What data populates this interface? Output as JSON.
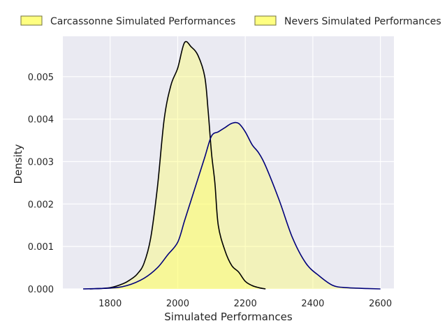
{
  "chart_data": {
    "type": "area",
    "title": "",
    "xlabel": "Simulated Performances",
    "ylabel": "Density",
    "xlim": [
      1660,
      2640
    ],
    "ylim": [
      0,
      0.00595
    ],
    "x_ticks": [
      1800,
      2000,
      2200,
      2400,
      2600
    ],
    "y_ticks": [
      0.0,
      0.001,
      0.002,
      0.003,
      0.004,
      0.005
    ],
    "y_tick_labels": [
      "0.000",
      "0.001",
      "0.002",
      "0.003",
      "0.004",
      "0.005"
    ],
    "grid": true,
    "legend_position": "top",
    "colors": {
      "background": "#eaeaf2",
      "grid": "#ffffff",
      "fill": "#ffff66",
      "fill_opacity": 0.4,
      "legend_patch": "#ffff80",
      "legend_edge": "#707040"
    },
    "series": [
      {
        "name": "Carcassonne Simulated Performances",
        "color": "#000000",
        "x": [
          1740,
          1800,
          1840,
          1860,
          1880,
          1900,
          1920,
          1940,
          1960,
          1980,
          2000,
          2020,
          2040,
          2060,
          2080,
          2090,
          2100,
          2110,
          2120,
          2140,
          2160,
          2180,
          2200,
          2220,
          2240,
          2260
        ],
        "y": [
          0.0,
          3e-05,
          0.00013,
          0.00022,
          0.00035,
          0.0006,
          0.0012,
          0.0024,
          0.004,
          0.0048,
          0.0052,
          0.0058,
          0.0057,
          0.0055,
          0.005,
          0.0042,
          0.0032,
          0.0025,
          0.0015,
          0.0009,
          0.00055,
          0.0004,
          0.00018,
          8e-05,
          3e-05,
          0.0
        ]
      },
      {
        "name": "Nevers Simulated Performances",
        "color": "#00007a",
        "x": [
          1720,
          1800,
          1850,
          1900,
          1940,
          1970,
          2000,
          2020,
          2040,
          2060,
          2080,
          2100,
          2120,
          2140,
          2160,
          2180,
          2200,
          2220,
          2240,
          2260,
          2300,
          2340,
          2380,
          2420,
          2460,
          2500,
          2560,
          2600
        ],
        "y": [
          0.0,
          2e-05,
          8e-05,
          0.00025,
          0.0005,
          0.0008,
          0.0011,
          0.0016,
          0.0021,
          0.0026,
          0.0031,
          0.0036,
          0.0037,
          0.0038,
          0.0039,
          0.0039,
          0.0037,
          0.0034,
          0.0032,
          0.0029,
          0.0021,
          0.0012,
          0.0006,
          0.0003,
          8e-05,
          3e-05,
          1e-05,
          0.0
        ]
      }
    ]
  }
}
